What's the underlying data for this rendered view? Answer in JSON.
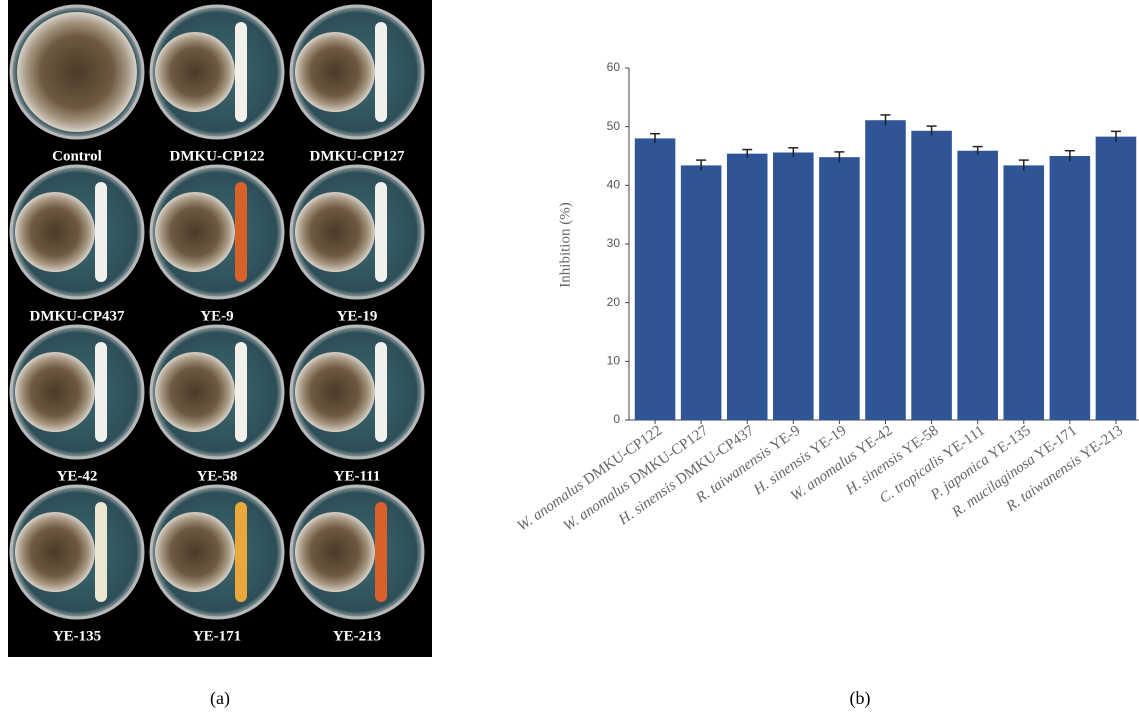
{
  "panel_a": {
    "labels": [
      "Control",
      "DMKU-CP122",
      "DMKU-CP127",
      "DMKU-CP437",
      "YE-9",
      "YE-19",
      "YE-42",
      "YE-58",
      "YE-111",
      "YE-135",
      "YE-171",
      "YE-213"
    ],
    "caption": "(a)"
  },
  "chart_data": {
    "type": "bar",
    "ylabel": "Inhibition  (%)",
    "categories": [
      "W. anomalus DMKU-CP122",
      "W. anomalus DMKU-CP127",
      "H. sinensis DMKU-CP437",
      "R. taiwanensis YE-9",
      "H. sinensis YE-19",
      "W. anomalus  YE-42",
      "H. sinensis YE-58",
      "C. tropicalis YE-111",
      "P. japonica YE-135",
      "R. mucilaginosa YE-171",
      "R. taiwanensis YE-213"
    ],
    "values": [
      48.0,
      43.4,
      45.4,
      45.6,
      44.8,
      51.1,
      49.3,
      45.9,
      43.4,
      45.0,
      48.3
    ],
    "errors": [
      0.8,
      0.9,
      0.7,
      0.8,
      0.9,
      0.9,
      0.8,
      0.7,
      0.9,
      0.9,
      0.9
    ],
    "color": "#2f5597",
    "ylim": [
      0,
      60
    ],
    "yticks": [
      0,
      10,
      20,
      30,
      40,
      50,
      60
    ],
    "grid": false,
    "caption": "(b)"
  }
}
